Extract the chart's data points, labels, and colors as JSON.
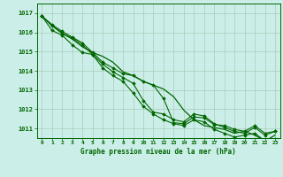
{
  "background_color": "#cceee8",
  "grid_color": "#aaccbb",
  "line_color": "#006600",
  "marker_color": "#006600",
  "text_color": "#006600",
  "xlabel": "Graphe pression niveau de la mer (hPa)",
  "x_ticks": [
    0,
    1,
    2,
    3,
    4,
    5,
    6,
    7,
    8,
    9,
    10,
    11,
    12,
    13,
    14,
    15,
    16,
    17,
    18,
    19,
    20,
    21,
    22,
    23
  ],
  "ylim": [
    1010.5,
    1017.5
  ],
  "xlim": [
    -0.5,
    23.5
  ],
  "yticks": [
    1011,
    1012,
    1013,
    1014,
    1015,
    1016,
    1017
  ],
  "series1": [
    1016.85,
    1016.4,
    1016.05,
    1015.75,
    1015.45,
    1014.95,
    1014.45,
    1014.15,
    1013.85,
    1013.75,
    1013.45,
    1013.25,
    1012.55,
    1011.3,
    1011.25,
    1011.6,
    1011.55,
    1011.2,
    1011.15,
    1010.95,
    1010.85,
    1011.15,
    1010.75,
    1010.85
  ],
  "series2": [
    1016.85,
    1016.35,
    1015.95,
    1015.7,
    1015.35,
    1014.85,
    1014.35,
    1013.95,
    1013.65,
    1013.35,
    1012.45,
    1011.85,
    1011.75,
    1011.45,
    1011.35,
    1011.75,
    1011.65,
    1011.25,
    1011.05,
    1010.85,
    1010.75,
    1011.05,
    1010.65,
    1010.85
  ],
  "series3": [
    1016.85,
    1016.1,
    1015.85,
    1015.35,
    1014.95,
    1014.85,
    1014.15,
    1013.75,
    1013.45,
    1012.85,
    1012.15,
    1011.75,
    1011.45,
    1011.25,
    1011.15,
    1011.45,
    1011.35,
    1010.95,
    1010.75,
    1010.55,
    1010.65,
    1010.75,
    1010.35,
    1010.45
  ],
  "series4_main": [
    1016.85,
    1016.35,
    1015.95,
    1015.65,
    1015.25,
    1014.95,
    1014.75,
    1014.45,
    1013.95,
    1013.75,
    1013.45,
    1013.25,
    1013.05,
    1012.65,
    1011.95,
    1011.45,
    1011.15,
    1011.05,
    1010.95,
    1010.75,
    1010.85,
    1010.65,
    1010.35,
    1010.65
  ]
}
